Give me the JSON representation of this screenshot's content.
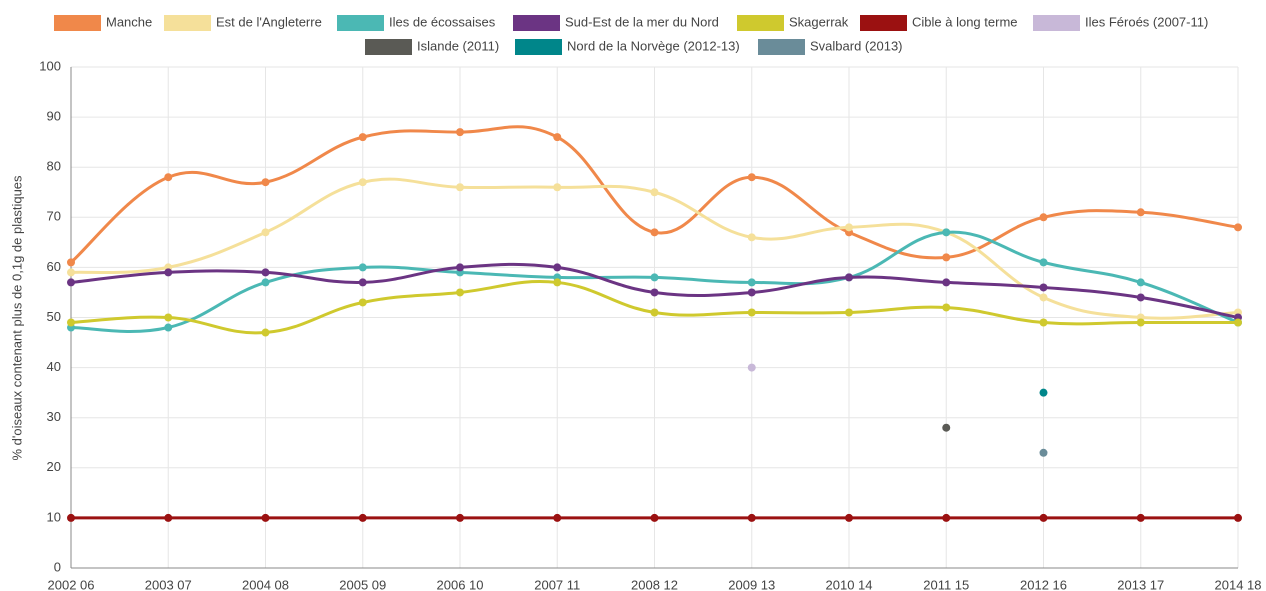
{
  "chart_data": {
    "type": "line",
    "y_label": "% d'oiseaux contenant plus de 0,1g de plastiques",
    "categories": [
      "2002 06",
      "2003 07",
      "2004 08",
      "2005 09",
      "2006 10",
      "2007 11",
      "2008 12",
      "2009 13",
      "2010 14",
      "2011 15",
      "2012 16",
      "2013 17",
      "2014 18"
    ],
    "series": [
      {
        "name": "Manche",
        "color": "#f0884a",
        "values": [
          61,
          78,
          77,
          86,
          87,
          86,
          67,
          78,
          67,
          62,
          70,
          71,
          68
        ]
      },
      {
        "name": "Est de l'Angleterre",
        "color": "#f5e09a",
        "values": [
          59,
          60,
          67,
          77,
          76,
          76,
          75,
          66,
          68,
          67,
          54,
          50,
          51
        ]
      },
      {
        "name": "Iles de écossaises",
        "color": "#4bb8b4",
        "values": [
          48,
          48,
          57,
          60,
          59,
          58,
          58,
          57,
          58,
          67,
          61,
          57,
          49
        ]
      },
      {
        "name": "Sud-Est de la mer du Nord",
        "color": "#6b3483",
        "values": [
          57,
          59,
          59,
          57,
          60,
          60,
          55,
          55,
          58,
          57,
          56,
          54,
          50
        ]
      },
      {
        "name": "Skagerrak",
        "color": "#cfc92e",
        "values": [
          49,
          50,
          47,
          53,
          55,
          57,
          51,
          51,
          51,
          52,
          49,
          49,
          49
        ]
      },
      {
        "name": "Cible à long terme",
        "color": "#9b1111",
        "values": [
          10,
          10,
          10,
          10,
          10,
          10,
          10,
          10,
          10,
          10,
          10,
          10,
          10
        ]
      },
      {
        "name": "Iles Féroés (2007-11)",
        "color": "#c8b8d8",
        "values": [
          null,
          null,
          null,
          null,
          null,
          null,
          null,
          40,
          null,
          null,
          null,
          null,
          null
        ]
      },
      {
        "name": "Islande (2011)",
        "color": "#5a5a55",
        "values": [
          null,
          null,
          null,
          null,
          null,
          null,
          null,
          null,
          null,
          28,
          null,
          null,
          null
        ]
      },
      {
        "name": "Nord de la Norvège (2012-13)",
        "color": "#00868a",
        "values": [
          null,
          null,
          null,
          null,
          null,
          null,
          null,
          null,
          null,
          null,
          35,
          null,
          null
        ]
      },
      {
        "name": "Svalbard (2013)",
        "color": "#6a8c99",
        "values": [
          null,
          null,
          null,
          null,
          null,
          null,
          null,
          null,
          null,
          null,
          23,
          null,
          null
        ]
      }
    ],
    "ylim": [
      0,
      100
    ],
    "yticks": [
      0,
      10,
      20,
      30,
      40,
      50,
      60,
      70,
      80,
      90,
      100
    ],
    "grid": true,
    "legend": "top"
  }
}
